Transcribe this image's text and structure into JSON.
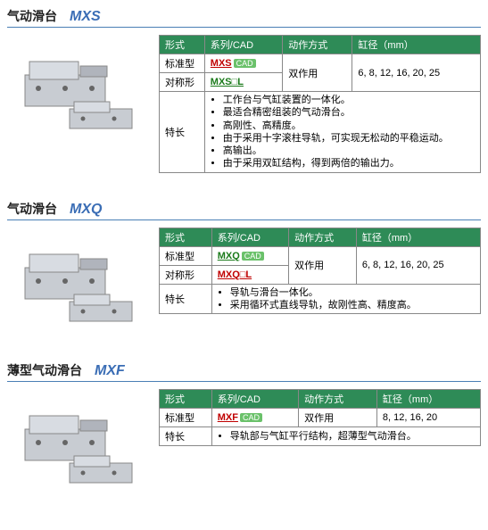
{
  "sections": [
    {
      "title_cn": "气动滑台",
      "title_model": "MXS",
      "header": {
        "form": "形式",
        "series": "系列/CAD",
        "action": "动作方式",
        "bore": "缸径（mm）"
      },
      "rows": [
        {
          "form": "标准型",
          "series_text": "MXS",
          "series_color": "link-red",
          "cad": true
        },
        {
          "form": "对称形",
          "series_text": "MXS□L",
          "series_color": "link-green",
          "cad": false
        }
      ],
      "action": "双作用",
      "bore": "6, 8, 12, 16, 20, 25",
      "features_label": "特长",
      "features": [
        "工作台与气缸装置的一体化。",
        "最适合精密组装的气动滑台。",
        "高刚性、高精度。",
        "由于采用十字滚柱导轨，可实现无松动的平稳运动。",
        "高输出。",
        "由于采用双缸结构，得到两倍的输出力。"
      ]
    },
    {
      "title_cn": "气动滑台",
      "title_model": "MXQ",
      "header": {
        "form": "形式",
        "series": "系列/CAD",
        "action": "动作方式",
        "bore": "缸径（mm）"
      },
      "rows": [
        {
          "form": "标准型",
          "series_text": "MXQ",
          "series_color": "link-green",
          "cad": true
        },
        {
          "form": "对称形",
          "series_text": "MXQ□L",
          "series_color": "link-red",
          "cad": false
        }
      ],
      "action": "双作用",
      "bore": "6, 8, 12, 16, 20, 25",
      "features_label": "特长",
      "features": [
        "导轨与滑台一体化。",
        "采用循环式直线导轨，故刚性高、精度高。"
      ]
    },
    {
      "title_cn": "薄型气动滑台",
      "title_model": "MXF",
      "header": {
        "form": "形式",
        "series": "系列/CAD",
        "action": "动作方式",
        "bore": "缸径（mm）"
      },
      "rows": [
        {
          "form": "标准型",
          "series_text": "MXF",
          "series_color": "link-red",
          "cad": true
        }
      ],
      "action": "双作用",
      "bore": "8, 12, 16, 20",
      "features_label": "特长",
      "features": [
        "导轨部与气缸平行结构，超薄型气动滑台。"
      ]
    }
  ],
  "colors": {
    "header_bg": "#2e8b57",
    "title_line": "#4a7fb5",
    "model_color": "#3a6db5"
  }
}
